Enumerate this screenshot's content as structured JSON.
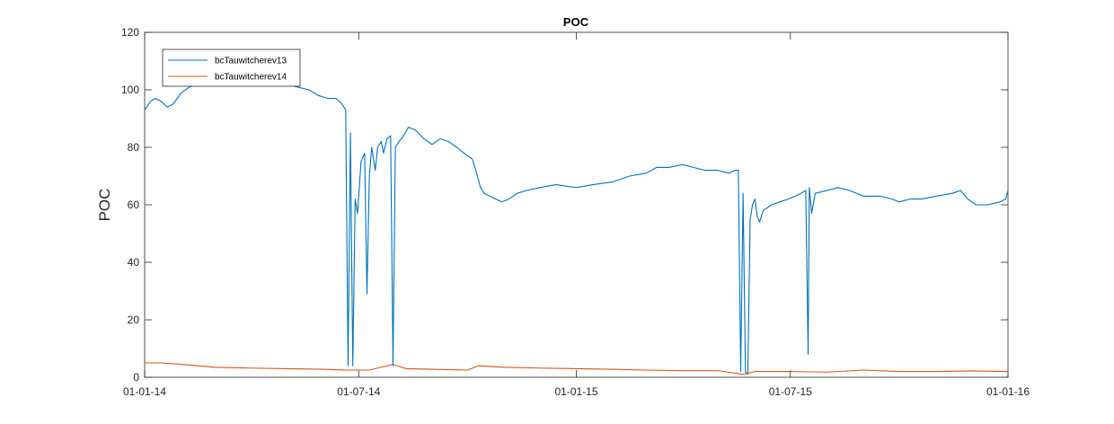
{
  "chart_data": {
    "type": "line",
    "title": "POC",
    "xlabel": "",
    "ylabel": "POC",
    "x_type": "date",
    "xlim": [
      "2014-01-01",
      "2016-01-01"
    ],
    "ylim": [
      0,
      120
    ],
    "xticks": [
      {
        "value": "2014-01-01",
        "label": "01-01-14"
      },
      {
        "value": "2014-07-01",
        "label": "01-07-14"
      },
      {
        "value": "2015-01-01",
        "label": "01-01-15"
      },
      {
        "value": "2015-07-01",
        "label": "01-07-15"
      },
      {
        "value": "2016-01-01",
        "label": "01-01-16"
      }
    ],
    "yticks": [
      0,
      20,
      40,
      60,
      80,
      100,
      120
    ],
    "grid": false,
    "legend_position": "top-left",
    "series": [
      {
        "name": "bcTauwitcherev13",
        "color": "#0072bd",
        "points": [
          [
            "2014-01-01",
            93
          ],
          [
            "2014-01-06",
            96
          ],
          [
            "2014-01-10",
            97
          ],
          [
            "2014-01-15",
            96
          ],
          [
            "2014-01-20",
            94
          ],
          [
            "2014-01-25",
            95
          ],
          [
            "2014-02-01",
            99
          ],
          [
            "2014-02-08",
            101
          ],
          [
            "2014-02-15",
            102
          ],
          [
            "2014-02-22",
            102
          ],
          [
            "2014-03-01",
            103
          ],
          [
            "2014-03-15",
            103
          ],
          [
            "2014-04-01",
            103
          ],
          [
            "2014-04-15",
            103
          ],
          [
            "2014-04-25",
            102
          ],
          [
            "2014-05-01",
            102
          ],
          [
            "2014-05-10",
            101
          ],
          [
            "2014-05-20",
            100
          ],
          [
            "2014-05-28",
            98
          ],
          [
            "2014-06-05",
            97
          ],
          [
            "2014-06-12",
            97
          ],
          [
            "2014-06-17",
            95
          ],
          [
            "2014-06-20",
            93
          ],
          [
            "2014-06-22",
            4
          ],
          [
            "2014-06-24",
            85
          ],
          [
            "2014-06-26",
            4
          ],
          [
            "2014-06-28",
            62
          ],
          [
            "2014-06-30",
            57
          ],
          [
            "2014-07-03",
            75
          ],
          [
            "2014-07-06",
            78
          ],
          [
            "2014-07-08",
            29
          ],
          [
            "2014-07-10",
            70
          ],
          [
            "2014-07-12",
            80
          ],
          [
            "2014-07-15",
            72
          ],
          [
            "2014-07-17",
            80
          ],
          [
            "2014-07-20",
            82
          ],
          [
            "2014-07-22",
            78
          ],
          [
            "2014-07-25",
            83
          ],
          [
            "2014-07-28",
            84
          ],
          [
            "2014-07-30",
            4
          ],
          [
            "2014-08-01",
            80
          ],
          [
            "2014-08-04",
            82
          ],
          [
            "2014-08-08",
            84
          ],
          [
            "2014-08-12",
            87
          ],
          [
            "2014-08-18",
            86
          ],
          [
            "2014-08-25",
            83
          ],
          [
            "2014-09-01",
            81
          ],
          [
            "2014-09-08",
            83
          ],
          [
            "2014-09-15",
            82
          ],
          [
            "2014-09-22",
            80
          ],
          [
            "2014-09-28",
            78
          ],
          [
            "2014-10-01",
            77
          ],
          [
            "2014-10-05",
            76
          ],
          [
            "2014-10-08",
            72
          ],
          [
            "2014-10-12",
            66
          ],
          [
            "2014-10-15",
            64
          ],
          [
            "2014-10-20",
            63
          ],
          [
            "2014-10-25",
            62
          ],
          [
            "2014-10-30",
            61
          ],
          [
            "2014-11-05",
            62
          ],
          [
            "2014-11-12",
            64
          ],
          [
            "2014-11-20",
            65
          ],
          [
            "2014-12-01",
            66
          ],
          [
            "2014-12-15",
            67
          ],
          [
            "2015-01-01",
            66
          ],
          [
            "2015-01-15",
            67
          ],
          [
            "2015-02-01",
            68
          ],
          [
            "2015-02-15",
            70
          ],
          [
            "2015-03-01",
            71
          ],
          [
            "2015-03-10",
            73
          ],
          [
            "2015-03-20",
            73
          ],
          [
            "2015-04-01",
            74
          ],
          [
            "2015-04-10",
            73
          ],
          [
            "2015-04-20",
            72
          ],
          [
            "2015-05-01",
            72
          ],
          [
            "2015-05-10",
            71
          ],
          [
            "2015-05-15",
            72
          ],
          [
            "2015-05-18",
            72
          ],
          [
            "2015-05-20",
            2
          ],
          [
            "2015-05-22",
            64
          ],
          [
            "2015-05-24",
            2
          ],
          [
            "2015-05-26",
            1
          ],
          [
            "2015-05-28",
            55
          ],
          [
            "2015-05-30",
            60
          ],
          [
            "2015-06-01",
            62
          ],
          [
            "2015-06-03",
            56
          ],
          [
            "2015-06-05",
            54
          ],
          [
            "2015-06-08",
            58
          ],
          [
            "2015-06-15",
            60
          ],
          [
            "2015-06-22",
            61
          ],
          [
            "2015-06-29",
            62
          ],
          [
            "2015-07-05",
            63
          ],
          [
            "2015-07-10",
            64
          ],
          [
            "2015-07-14",
            65
          ],
          [
            "2015-07-16",
            8
          ],
          [
            "2015-07-17",
            66
          ],
          [
            "2015-07-19",
            57
          ],
          [
            "2015-07-22",
            64
          ],
          [
            "2015-08-01",
            65
          ],
          [
            "2015-08-10",
            66
          ],
          [
            "2015-08-20",
            65
          ],
          [
            "2015-09-01",
            63
          ],
          [
            "2015-09-15",
            63
          ],
          [
            "2015-09-25",
            62
          ],
          [
            "2015-10-01",
            61
          ],
          [
            "2015-10-10",
            62
          ],
          [
            "2015-10-20",
            62
          ],
          [
            "2015-11-01",
            63
          ],
          [
            "2015-11-15",
            64
          ],
          [
            "2015-11-22",
            65
          ],
          [
            "2015-11-28",
            62
          ],
          [
            "2015-12-05",
            60
          ],
          [
            "2015-12-15",
            60
          ],
          [
            "2015-12-25",
            61
          ],
          [
            "2015-12-30",
            62
          ],
          [
            "2016-01-01",
            65
          ]
        ]
      },
      {
        "name": "bcTauwitcherev14",
        "color": "#d95319",
        "points": [
          [
            "2014-01-01",
            5
          ],
          [
            "2014-01-15",
            5
          ],
          [
            "2014-02-01",
            4.5
          ],
          [
            "2014-03-01",
            3.5
          ],
          [
            "2014-04-01",
            3.2
          ],
          [
            "2014-05-01",
            3
          ],
          [
            "2014-06-01",
            2.8
          ],
          [
            "2014-06-20",
            2.5
          ],
          [
            "2014-07-10",
            2.5
          ],
          [
            "2014-07-30",
            4.5
          ],
          [
            "2014-08-10",
            3
          ],
          [
            "2014-09-01",
            2.8
          ],
          [
            "2014-10-01",
            2.5
          ],
          [
            "2014-10-10",
            4
          ],
          [
            "2014-11-01",
            3.5
          ],
          [
            "2014-12-01",
            3.2
          ],
          [
            "2015-01-01",
            3
          ],
          [
            "2015-02-01",
            2.8
          ],
          [
            "2015-03-01",
            2.5
          ],
          [
            "2015-04-01",
            2.3
          ],
          [
            "2015-05-01",
            2.3
          ],
          [
            "2015-05-22",
            1
          ],
          [
            "2015-06-01",
            2
          ],
          [
            "2015-07-01",
            2
          ],
          [
            "2015-08-01",
            1.8
          ],
          [
            "2015-09-01",
            2.5
          ],
          [
            "2015-10-01",
            2
          ],
          [
            "2015-11-01",
            2
          ],
          [
            "2015-12-01",
            2.2
          ],
          [
            "2016-01-01",
            2
          ]
        ]
      }
    ]
  }
}
